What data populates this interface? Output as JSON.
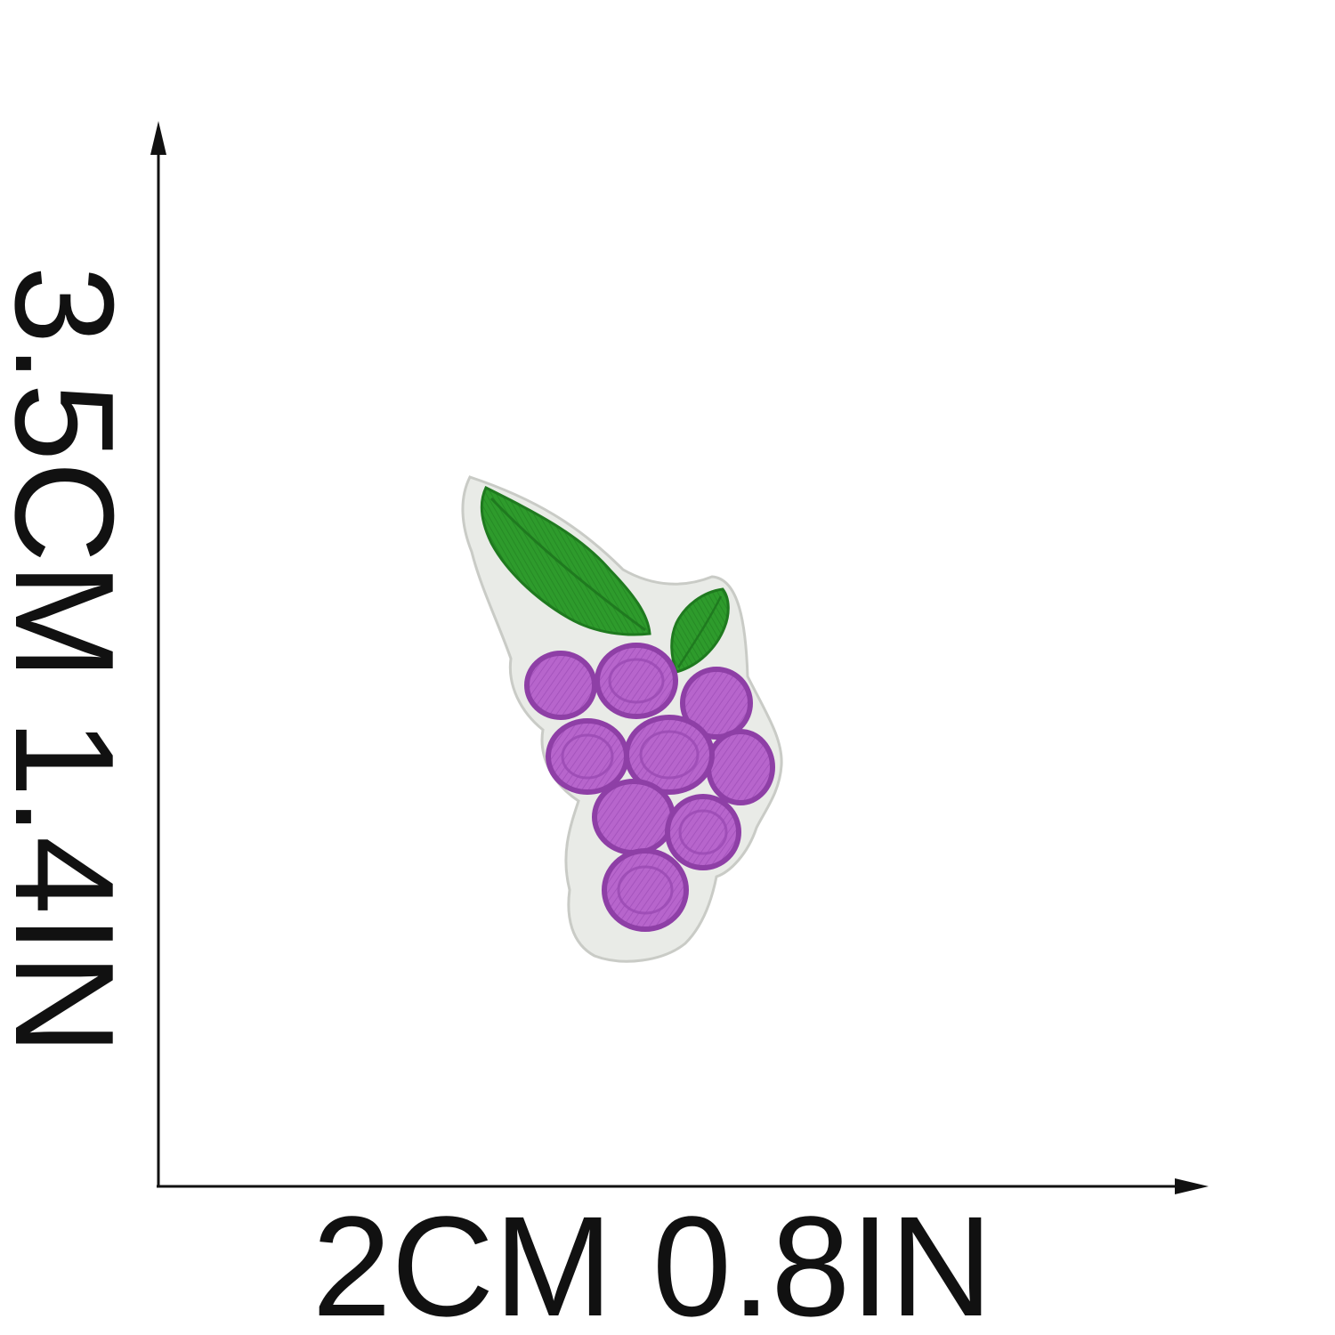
{
  "dimensions": {
    "height_label": "3.5CM 1.4IN",
    "width_label": "2CM 0.8IN"
  },
  "product": {
    "icon": "grape-embroidered-patch-icon"
  },
  "colors": {
    "background": "#ffffff",
    "ink": "#111111",
    "felt_backing": "#e9ebe7",
    "felt_edge": "#c9cbc6",
    "leaf": "#2e9b2c",
    "leaf_dark": "#1f7a1f",
    "grape": "#b765cc",
    "grape_dark": "#8e3fa6"
  }
}
